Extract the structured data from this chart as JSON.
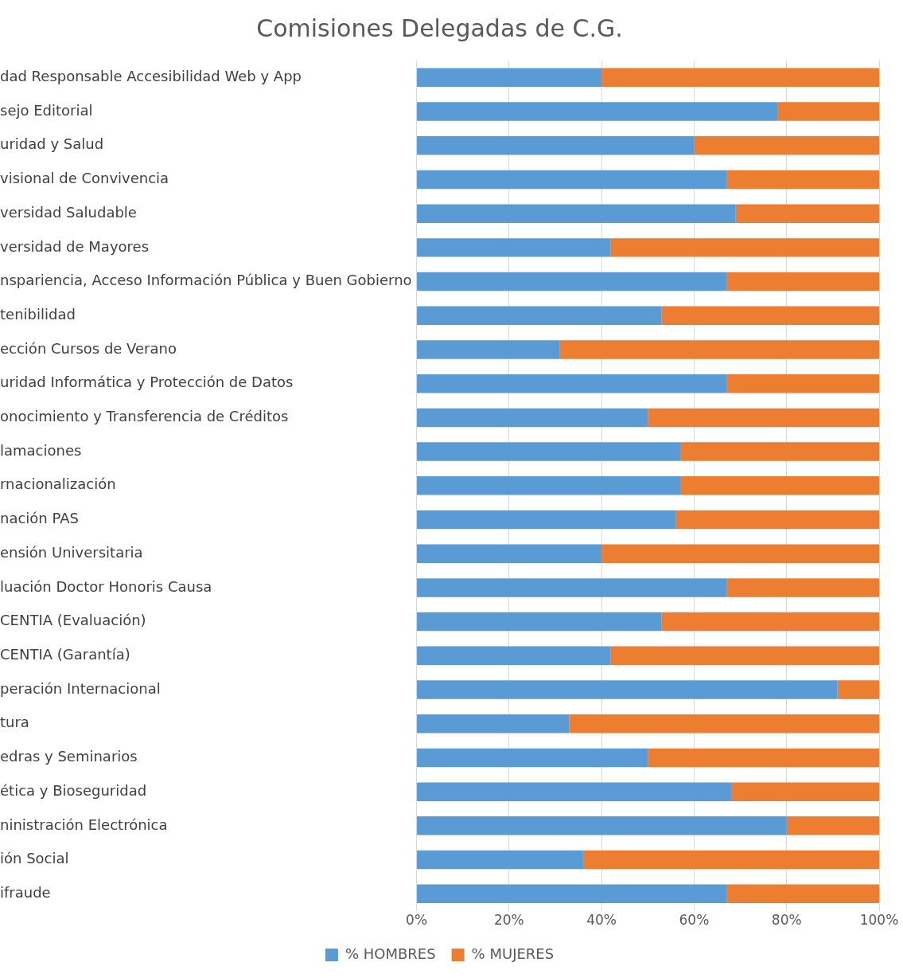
{
  "chart_data": {
    "type": "bar",
    "title": "Comisiones Delegadas de C.G.",
    "orientation": "horizontal",
    "stacked": true,
    "categories": [
      "dad Responsable Accesibilidad Web y App",
      "sejo Editorial",
      "uridad y Salud",
      "visional de Convivencia",
      "versidad Saludable",
      "versidad de Mayores",
      "nspariencia, Acceso Información Pública y Buen Gobierno",
      "tenibilidad",
      "ección Cursos de Verano",
      "uridad Informática y Protección de Datos",
      "onocimiento y Transferencia de Créditos",
      "lamaciones",
      "rnacionalización",
      "nación PAS",
      "ensión Universitaria",
      "luación Doctor Honoris Causa",
      "CENTIA (Evaluación)",
      "CENTIA (Garantía)",
      "peración Internacional",
      "tura",
      "edras y Seminarios",
      "ética y Bioseguridad",
      "ninistración Electrónica",
      "ión Social",
      "ifraude"
    ],
    "series": [
      {
        "name": "% HOMBRES",
        "color": "#5b9bd5",
        "values": [
          40,
          78,
          60,
          67,
          69,
          42,
          67,
          53,
          31,
          67,
          50,
          57,
          57,
          56,
          40,
          67,
          53,
          42,
          91,
          33,
          50,
          68,
          80,
          36,
          67
        ]
      },
      {
        "name": "% MUJERES",
        "color": "#ed7d31",
        "values": [
          60,
          22,
          40,
          33,
          31,
          58,
          33,
          47,
          69,
          33,
          50,
          43,
          43,
          44,
          60,
          33,
          47,
          58,
          9,
          67,
          50,
          32,
          20,
          64,
          33
        ]
      }
    ],
    "xlim": [
      0,
      100
    ],
    "xticks": [
      {
        "value": 0,
        "label": "0%"
      },
      {
        "value": 20,
        "label": "20%"
      },
      {
        "value": 40,
        "label": "40%"
      },
      {
        "value": 60,
        "label": "60%"
      },
      {
        "value": 80,
        "label": "80%"
      },
      {
        "value": 100,
        "label": "100%"
      }
    ],
    "grid": "x",
    "legend": "bottom"
  }
}
